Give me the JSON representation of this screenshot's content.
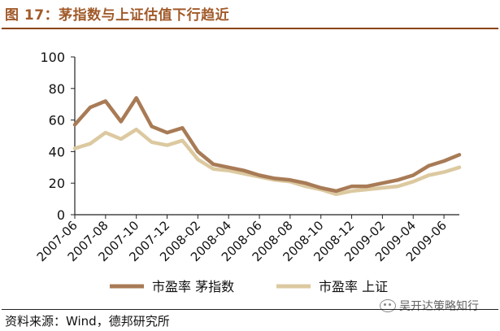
{
  "title": "图 17：茅指数与上证估值下行趋近",
  "source": "资料来源：Wind，德邦研究所",
  "watermark": "吴开达策略知行",
  "chart_data": {
    "type": "line",
    "ylim": [
      0,
      100
    ],
    "yticks": [
      0,
      20,
      40,
      60,
      80,
      100
    ],
    "xtick_labels": [
      "2007-06",
      "2007-08",
      "2007-10",
      "2007-12",
      "2008-02",
      "2008-04",
      "2008-06",
      "2008-08",
      "2008-10",
      "2008-12",
      "2009-02",
      "2009-04",
      "2009-06"
    ],
    "legend_position": "bottom",
    "x_months": [
      "2007-06",
      "2007-07",
      "2007-08",
      "2007-09",
      "2007-10",
      "2007-11",
      "2007-12",
      "2008-01",
      "2008-02",
      "2008-03",
      "2008-04",
      "2008-05",
      "2008-06",
      "2008-07",
      "2008-08",
      "2008-09",
      "2008-10",
      "2008-11",
      "2008-12",
      "2009-01",
      "2009-02",
      "2009-03",
      "2009-04",
      "2009-05",
      "2009-06",
      "2009-07"
    ],
    "series": [
      {
        "name": "市盈率  茅指数",
        "color": "#a87b56",
        "values": [
          57,
          68,
          72,
          59,
          74,
          56,
          52,
          55,
          40,
          32,
          30,
          28,
          25,
          23,
          22,
          20,
          17,
          15,
          18,
          18,
          20,
          22,
          25,
          31,
          34,
          38
        ]
      },
      {
        "name": "市盈率  上证",
        "color": "#dcc9a0",
        "values": [
          42,
          45,
          52,
          48,
          54,
          46,
          44,
          47,
          35,
          29,
          28,
          26,
          24,
          22,
          21,
          18,
          16,
          13,
          15,
          16,
          17,
          18,
          21,
          25,
          27,
          30
        ]
      }
    ]
  }
}
